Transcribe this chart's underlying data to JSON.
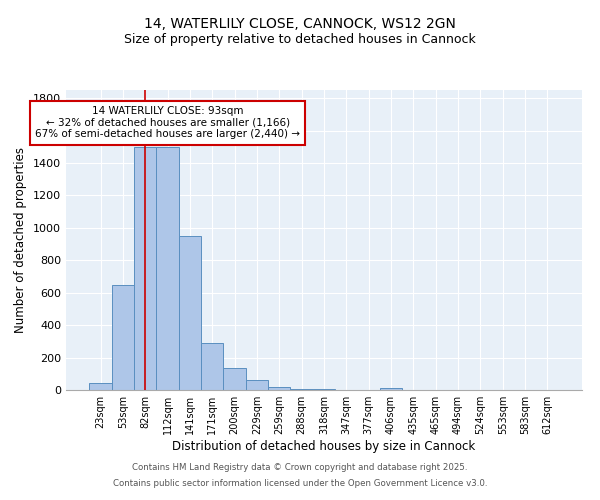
{
  "title1": "14, WATERLILY CLOSE, CANNOCK, WS12 2GN",
  "title2": "Size of property relative to detached houses in Cannock",
  "xlabel": "Distribution of detached houses by size in Cannock",
  "ylabel": "Number of detached properties",
  "categories": [
    "23sqm",
    "53sqm",
    "82sqm",
    "112sqm",
    "141sqm",
    "171sqm",
    "200sqm",
    "229sqm",
    "259sqm",
    "288sqm",
    "318sqm",
    "347sqm",
    "377sqm",
    "406sqm",
    "435sqm",
    "465sqm",
    "494sqm",
    "524sqm",
    "553sqm",
    "583sqm",
    "612sqm"
  ],
  "values": [
    45,
    650,
    1500,
    1500,
    950,
    290,
    135,
    60,
    20,
    8,
    4,
    3,
    2,
    10,
    0,
    0,
    0,
    0,
    0,
    0,
    0
  ],
  "bar_color": "#aec6e8",
  "bar_edge_color": "#5a8fc0",
  "background_color": "#e8f0f8",
  "vline_x": 2.0,
  "vline_color": "#cc0000",
  "annotation_text": "14 WATERLILY CLOSE: 93sqm\n← 32% of detached houses are smaller (1,166)\n67% of semi-detached houses are larger (2,440) →",
  "annotation_box_color": "#ffffff",
  "annotation_box_edge": "#cc0000",
  "ylim": [
    0,
    1850
  ],
  "yticks": [
    0,
    200,
    400,
    600,
    800,
    1000,
    1200,
    1400,
    1600,
    1800
  ],
  "footer1": "Contains HM Land Registry data © Crown copyright and database right 2025.",
  "footer2": "Contains public sector information licensed under the Open Government Licence v3.0."
}
